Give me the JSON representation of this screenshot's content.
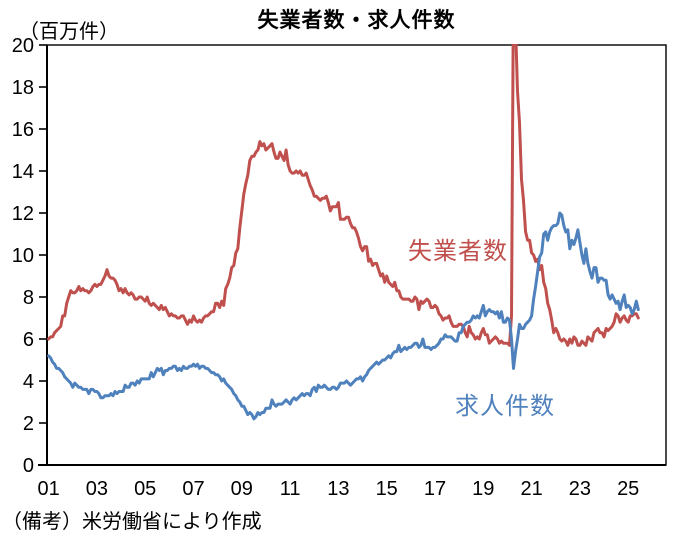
{
  "chart_data": {
    "type": "line",
    "title": "失業者数・求人件数",
    "unit_label": "（百万件）",
    "note": "（備考）米労働省により作成",
    "x_axis": {
      "tick_labels": [
        "01",
        "03",
        "05",
        "07",
        "09",
        "11",
        "13",
        "15",
        "17",
        "19",
        "21",
        "23",
        "25"
      ],
      "tick_years": [
        2001,
        2003,
        2005,
        2007,
        2009,
        2011,
        2013,
        2015,
        2017,
        2019,
        2021,
        2023,
        2025
      ],
      "start_year": 2001,
      "step_months": 1
    },
    "y_axis": {
      "ticks": [
        0,
        2,
        4,
        6,
        8,
        10,
        12,
        14,
        16,
        18,
        20
      ],
      "ylim": [
        0,
        20
      ]
    },
    "grid": false,
    "legend_position": "in-plot-labels",
    "frame_color": "#000000",
    "series": [
      {
        "name": "失業者数",
        "color": "#C0504D",
        "values": [
          6.0,
          6.1,
          6.1,
          6.3,
          6.4,
          6.5,
          6.6,
          7.1,
          7.1,
          7.7,
          8.0,
          8.3,
          8.2,
          8.2,
          8.3,
          8.5,
          8.3,
          8.4,
          8.3,
          8.3,
          8.2,
          8.3,
          8.5,
          8.6,
          8.5,
          8.6,
          8.6,
          8.8,
          9.0,
          9.3,
          9.0,
          8.9,
          8.9,
          8.8,
          8.6,
          8.3,
          8.4,
          8.2,
          8.4,
          8.2,
          8.1,
          8.2,
          8.1,
          7.9,
          7.9,
          8.0,
          8.0,
          7.9,
          7.8,
          8.0,
          7.7,
          7.6,
          7.7,
          7.6,
          7.5,
          7.4,
          7.6,
          7.4,
          7.5,
          7.3,
          7.1,
          7.2,
          7.1,
          7.1,
          7.0,
          7.0,
          7.1,
          7.1,
          6.9,
          6.7,
          6.9,
          6.8,
          7.1,
          6.9,
          6.8,
          6.9,
          6.8,
          7.0,
          7.1,
          7.1,
          7.2,
          7.3,
          7.3,
          7.7,
          7.7,
          7.5,
          7.8,
          7.6,
          8.4,
          8.6,
          8.9,
          9.4,
          9.5,
          10.1,
          10.3,
          11.3,
          12.1,
          12.9,
          13.4,
          13.8,
          14.5,
          14.7,
          14.7,
          14.9,
          15.0,
          15.4,
          15.2,
          15.3,
          15.0,
          15.1,
          15.2,
          15.3,
          14.9,
          14.6,
          14.6,
          14.9,
          14.7,
          14.5,
          15.0,
          14.3,
          14.0,
          13.9,
          13.9,
          14.0,
          13.9,
          14.0,
          13.8,
          13.8,
          13.9,
          13.6,
          13.3,
          13.1,
          12.8,
          12.8,
          12.7,
          12.6,
          12.7,
          12.7,
          12.8,
          12.5,
          12.1,
          12.3,
          12.3,
          12.3,
          12.5,
          11.7,
          11.7,
          11.7,
          11.8,
          11.8,
          11.5,
          11.3,
          11.3,
          11.1,
          10.8,
          10.4,
          10.2,
          10.4,
          10.4,
          9.7,
          9.8,
          9.5,
          9.6,
          9.6,
          9.3,
          9.0,
          9.1,
          8.7,
          9.0,
          8.7,
          8.6,
          8.5,
          8.7,
          8.3,
          8.3,
          8.0,
          7.9,
          7.9,
          7.9,
          7.9,
          7.8,
          7.8,
          8.0,
          7.9,
          7.4,
          7.8,
          7.7,
          7.8,
          7.9,
          7.8,
          7.5,
          7.5,
          7.6,
          7.5,
          7.2,
          7.1,
          6.9,
          7.0,
          7.0,
          7.1,
          6.8,
          6.6,
          6.6,
          6.6,
          6.7,
          6.7,
          6.6,
          6.3,
          6.1,
          6.6,
          6.3,
          6.2,
          6.0,
          6.1,
          6.0,
          6.3,
          6.5,
          6.2,
          6.2,
          5.8,
          5.9,
          6.0,
          6.1,
          6.0,
          5.8,
          5.9,
          5.8,
          5.8,
          5.8,
          5.7,
          7.1,
          23.1,
          21.0,
          17.8,
          16.3,
          13.6,
          12.6,
          11.1,
          10.7,
          10.7,
          10.1,
          10.0,
          9.7,
          9.8,
          9.3,
          9.5,
          8.7,
          8.4,
          7.7,
          7.4,
          6.9,
          6.3,
          6.5,
          6.3,
          6.0,
          5.9,
          6.0,
          5.9,
          5.7,
          6.0,
          5.8,
          6.1,
          6.0,
          5.7,
          5.7,
          5.9,
          5.8,
          5.7,
          6.1,
          6.0,
          5.9,
          6.3,
          6.4,
          6.5,
          6.3,
          6.3,
          6.1,
          6.5,
          6.4,
          6.5,
          6.6,
          6.8,
          7.2,
          7.1,
          6.8,
          7.0,
          7.1,
          6.9,
          6.8,
          7.1,
          7.1,
          7.2,
          7.2,
          7.0
        ]
      },
      {
        "name": "求人件数",
        "color": "#4F81BD",
        "values": [
          5.2,
          5.1,
          4.9,
          4.8,
          4.6,
          4.6,
          4.5,
          4.4,
          4.2,
          4.1,
          4.0,
          3.9,
          3.7,
          3.9,
          3.8,
          3.7,
          3.7,
          3.6,
          3.6,
          3.6,
          3.4,
          3.6,
          3.6,
          3.5,
          3.5,
          3.4,
          3.2,
          3.2,
          3.3,
          3.3,
          3.3,
          3.4,
          3.3,
          3.5,
          3.4,
          3.5,
          3.5,
          3.5,
          3.8,
          3.7,
          3.7,
          3.9,
          3.9,
          3.8,
          4.0,
          3.9,
          4.1,
          4.1,
          4.1,
          4.1,
          4.1,
          4.4,
          4.2,
          4.4,
          4.6,
          4.5,
          4.6,
          4.3,
          4.5,
          4.5,
          4.6,
          4.6,
          4.7,
          4.7,
          4.5,
          4.6,
          4.5,
          4.7,
          4.6,
          4.6,
          4.7,
          4.7,
          4.8,
          4.7,
          4.8,
          4.6,
          4.7,
          4.7,
          4.6,
          4.6,
          4.5,
          4.4,
          4.4,
          4.3,
          4.3,
          4.2,
          4.0,
          4.1,
          3.9,
          3.8,
          3.7,
          3.6,
          3.4,
          3.3,
          3.1,
          3.0,
          2.8,
          2.8,
          2.6,
          2.4,
          2.5,
          2.4,
          2.2,
          2.3,
          2.5,
          2.4,
          2.5,
          2.5,
          2.7,
          2.7,
          2.7,
          3.1,
          2.9,
          2.8,
          2.9,
          2.9,
          2.9,
          3.0,
          3.1,
          3.0,
          2.9,
          3.1,
          3.2,
          3.1,
          3.2,
          3.3,
          3.4,
          3.3,
          3.4,
          3.4,
          3.3,
          3.6,
          3.7,
          3.5,
          3.8,
          3.7,
          3.7,
          3.8,
          3.7,
          3.6,
          3.6,
          3.7,
          3.7,
          3.6,
          3.7,
          3.9,
          3.9,
          3.9,
          4.0,
          3.9,
          3.8,
          3.9,
          4.0,
          4.1,
          4.1,
          4.2,
          4.0,
          4.2,
          4.3,
          4.5,
          4.6,
          4.7,
          4.8,
          4.9,
          4.8,
          4.9,
          5.0,
          5.0,
          5.1,
          5.2,
          5.1,
          5.3,
          5.4,
          5.4,
          5.7,
          5.4,
          5.5,
          5.6,
          5.5,
          5.6,
          5.6,
          5.7,
          5.8,
          5.8,
          5.6,
          5.7,
          6.0,
          5.6,
          5.6,
          5.6,
          5.5,
          5.6,
          5.6,
          5.7,
          5.8,
          6.0,
          6.0,
          6.2,
          6.1,
          6.1,
          6.1,
          6.0,
          5.9,
          5.9,
          6.3,
          6.3,
          6.6,
          6.7,
          6.8,
          6.8,
          6.9,
          7.1,
          7.0,
          7.1,
          7.0,
          7.3,
          7.6,
          7.1,
          7.3,
          7.4,
          7.3,
          7.3,
          7.2,
          7.3,
          7.0,
          7.3,
          6.8,
          6.8,
          7.0,
          6.9,
          6.0,
          4.6,
          5.4,
          6.0,
          6.7,
          6.5,
          6.5,
          6.7,
          6.8,
          6.9,
          7.1,
          7.9,
          8.5,
          9.2,
          9.9,
          10.1,
          11.0,
          11.1,
          10.7,
          11.1,
          11.3,
          11.4,
          11.4,
          11.5,
          12.0,
          11.9,
          11.4,
          11.1,
          11.2,
          10.3,
          10.7,
          10.5,
          10.8,
          11.2,
          10.6,
          10.0,
          9.6,
          10.3,
          9.6,
          9.2,
          8.9,
          9.4,
          9.4,
          8.7,
          8.9,
          8.9,
          8.8,
          8.8,
          8.1,
          7.9,
          8.1,
          7.9,
          7.7,
          7.8,
          7.4,
          7.8,
          8.1,
          7.5,
          7.6,
          7.5,
          7.2,
          7.4,
          7.8,
          7.4
        ]
      }
    ]
  }
}
